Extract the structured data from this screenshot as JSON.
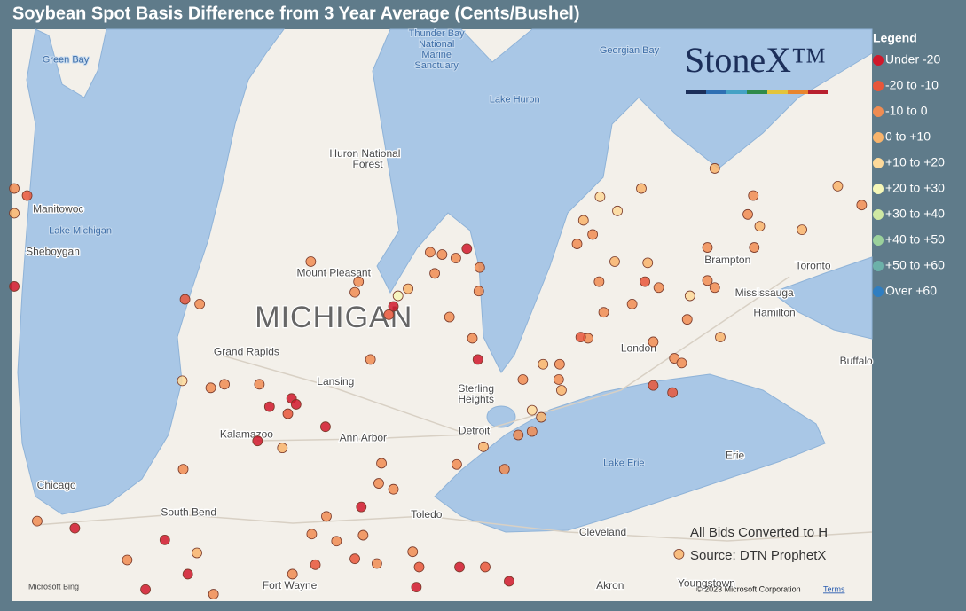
{
  "title": "Soybean Spot Basis Difference from 3 Year Average (Cents/Bushel)",
  "logo": "StoneX™",
  "footnotes": [
    "All Bids Converted to H",
    "Source: DTN ProphetX"
  ],
  "attribution": {
    "bing": "Microsoft Bing",
    "copyright": "© 2023 Microsoft Corporation",
    "terms": "Terms"
  },
  "legend": {
    "title": "Legend",
    "items": [
      {
        "label": "Under -20",
        "color": "#d0182b"
      },
      {
        "label": "-20 to -10",
        "color": "#e8563a"
      },
      {
        "label": "-10 to 0",
        "color": "#f08c52"
      },
      {
        "label": "0 to +10",
        "color": "#f8b46c"
      },
      {
        "label": "+10 to +20",
        "color": "#fdd99a"
      },
      {
        "label": "+20 to +30",
        "color": "#f6f7b8"
      },
      {
        "label": "+30 to +40",
        "color": "#cfe8a3"
      },
      {
        "label": "+40 to +50",
        "color": "#9bd19b"
      },
      {
        "label": "+50 to +60",
        "color": "#6cb1a9"
      },
      {
        "label": "Over +60",
        "color": "#2f7ec1"
      }
    ]
  },
  "map": {
    "labels": [
      {
        "text": "Green Bay",
        "lon": -87.26,
        "lat": 45.49,
        "kind": "water"
      },
      {
        "text": "Manitowoc",
        "lon": -87.34,
        "lat": 44.22,
        "kind": "place"
      },
      {
        "text": "Lake Michigan",
        "lon": -87.1,
        "lat": 44.04,
        "kind": "water"
      },
      {
        "text": "Sheboygan",
        "lon": -87.4,
        "lat": 43.86,
        "kind": "place"
      },
      {
        "text": "Chicago",
        "lon": -87.36,
        "lat": 41.88,
        "kind": "place"
      },
      {
        "text": "South Bend",
        "lon": -85.92,
        "lat": 41.65,
        "kind": "place"
      },
      {
        "text": "Thunder Bay",
        "lon": -83.22,
        "lat": 45.71,
        "kind": "water"
      },
      {
        "text": "National",
        "lon": -83.22,
        "lat": 45.62,
        "kind": "water"
      },
      {
        "text": "Marine",
        "lon": -83.22,
        "lat": 45.53,
        "kind": "water"
      },
      {
        "text": "Sanctuary",
        "lon": -83.22,
        "lat": 45.44,
        "kind": "water"
      },
      {
        "text": "Georgian Bay",
        "lon": -81.12,
        "lat": 45.57,
        "kind": "water"
      },
      {
        "text": "Lake Huron",
        "lon": -82.37,
        "lat": 45.15,
        "kind": "water"
      },
      {
        "text": "Huron National",
        "lon": -84.0,
        "lat": 44.69,
        "kind": "place"
      },
      {
        "text": "Forest",
        "lon": -83.97,
        "lat": 44.6,
        "kind": "place"
      },
      {
        "text": "Mount Pleasant",
        "lon": -84.34,
        "lat": 43.68,
        "kind": "place"
      },
      {
        "text": "MICHIGAN",
        "lon": -84.34,
        "lat": 43.29,
        "kind": "big"
      },
      {
        "text": "Grand Rapids",
        "lon": -85.29,
        "lat": 43.01,
        "kind": "place"
      },
      {
        "text": "Lansing",
        "lon": -84.32,
        "lat": 42.76,
        "kind": "place"
      },
      {
        "text": "Sterling",
        "lon": -82.79,
        "lat": 42.7,
        "kind": "place"
      },
      {
        "text": "Heights",
        "lon": -82.79,
        "lat": 42.61,
        "kind": "place"
      },
      {
        "text": "Detroit",
        "lon": -82.81,
        "lat": 42.34,
        "kind": "place"
      },
      {
        "text": "Ann Arbor",
        "lon": -84.02,
        "lat": 42.28,
        "kind": "place"
      },
      {
        "text": "Kalamazoo",
        "lon": -85.29,
        "lat": 42.31,
        "kind": "place"
      },
      {
        "text": "Toledo",
        "lon": -83.33,
        "lat": 41.63,
        "kind": "place"
      },
      {
        "text": "Lake Erie",
        "lon": -81.18,
        "lat": 42.07,
        "kind": "water"
      },
      {
        "text": "Erie",
        "lon": -79.97,
        "lat": 42.13,
        "kind": "place"
      },
      {
        "text": "Cleveland",
        "lon": -81.41,
        "lat": 41.48,
        "kind": "place"
      },
      {
        "text": "Akron",
        "lon": -81.33,
        "lat": 41.03,
        "kind": "place"
      },
      {
        "text": "Youngstown",
        "lon": -80.28,
        "lat": 41.05,
        "kind": "place"
      },
      {
        "text": "Fort Wayne",
        "lon": -84.82,
        "lat": 41.03,
        "kind": "place"
      },
      {
        "text": "London",
        "lon": -81.02,
        "lat": 43.04,
        "kind": "place"
      },
      {
        "text": "Brampton",
        "lon": -80.05,
        "lat": 43.79,
        "kind": "place"
      },
      {
        "text": "Mississauga",
        "lon": -79.65,
        "lat": 43.51,
        "kind": "place"
      },
      {
        "text": "Hamilton",
        "lon": -79.54,
        "lat": 43.34,
        "kind": "place"
      },
      {
        "text": "Toronto",
        "lon": -79.12,
        "lat": 43.74,
        "kind": "place"
      },
      {
        "text": "Buffalo",
        "lon": -78.65,
        "lat": 42.93,
        "kind": "place"
      }
    ],
    "points": [
      {
        "lon": -87.82,
        "lat": 43.57,
        "class": 0
      },
      {
        "lon": -85.96,
        "lat": 43.46,
        "class": 1
      },
      {
        "lon": -85.8,
        "lat": 43.42,
        "class": 2
      },
      {
        "lon": -84.59,
        "lat": 43.78,
        "class": 2
      },
      {
        "lon": -84.07,
        "lat": 43.61,
        "class": 2
      },
      {
        "lon": -84.11,
        "lat": 43.52,
        "class": 2
      },
      {
        "lon": -83.69,
        "lat": 43.4,
        "class": 0
      },
      {
        "lon": -83.74,
        "lat": 43.33,
        "class": 1
      },
      {
        "lon": -83.64,
        "lat": 43.49,
        "class": 5
      },
      {
        "lon": -83.53,
        "lat": 43.55,
        "class": 3
      },
      {
        "lon": -83.29,
        "lat": 43.86,
        "class": 2
      },
      {
        "lon": -83.16,
        "lat": 43.84,
        "class": 2
      },
      {
        "lon": -83.01,
        "lat": 43.81,
        "class": 2
      },
      {
        "lon": -82.89,
        "lat": 43.89,
        "class": 0
      },
      {
        "lon": -82.75,
        "lat": 43.73,
        "class": 2
      },
      {
        "lon": -82.76,
        "lat": 43.53,
        "class": 2
      },
      {
        "lon": -83.24,
        "lat": 43.68,
        "class": 2
      },
      {
        "lon": -83.08,
        "lat": 43.31,
        "class": 2
      },
      {
        "lon": -82.83,
        "lat": 43.13,
        "class": 2
      },
      {
        "lon": -82.77,
        "lat": 42.95,
        "class": 0
      },
      {
        "lon": -83.94,
        "lat": 42.95,
        "class": 2
      },
      {
        "lon": -85.99,
        "lat": 42.77,
        "class": 4
      },
      {
        "lon": -85.68,
        "lat": 42.71,
        "class": 2
      },
      {
        "lon": -85.53,
        "lat": 42.74,
        "class": 2
      },
      {
        "lon": -85.15,
        "lat": 42.74,
        "class": 2
      },
      {
        "lon": -84.8,
        "lat": 42.62,
        "class": 0
      },
      {
        "lon": -84.75,
        "lat": 42.57,
        "class": 0
      },
      {
        "lon": -85.04,
        "lat": 42.55,
        "class": 0
      },
      {
        "lon": -84.84,
        "lat": 42.49,
        "class": 1
      },
      {
        "lon": -84.43,
        "lat": 42.38,
        "class": 0
      },
      {
        "lon": -85.17,
        "lat": 42.26,
        "class": 0
      },
      {
        "lon": -84.9,
        "lat": 42.2,
        "class": 3
      },
      {
        "lon": -85.98,
        "lat": 42.02,
        "class": 2
      },
      {
        "lon": -83.82,
        "lat": 42.07,
        "class": 2
      },
      {
        "lon": -83.85,
        "lat": 41.9,
        "class": 2
      },
      {
        "lon": -83.69,
        "lat": 41.85,
        "class": 2
      },
      {
        "lon": -84.04,
        "lat": 41.7,
        "class": 0
      },
      {
        "lon": -84.42,
        "lat": 41.62,
        "class": 2
      },
      {
        "lon": -84.58,
        "lat": 41.47,
        "class": 2
      },
      {
        "lon": -84.31,
        "lat": 41.41,
        "class": 2
      },
      {
        "lon": -84.02,
        "lat": 41.46,
        "class": 2
      },
      {
        "lon": -84.11,
        "lat": 41.26,
        "class": 1
      },
      {
        "lon": -83.87,
        "lat": 41.22,
        "class": 2
      },
      {
        "lon": -84.54,
        "lat": 41.21,
        "class": 1
      },
      {
        "lon": -84.79,
        "lat": 41.13,
        "class": 2
      },
      {
        "lon": -87.16,
        "lat": 41.52,
        "class": 0
      },
      {
        "lon": -86.18,
        "lat": 41.42,
        "class": 0
      },
      {
        "lon": -85.83,
        "lat": 41.31,
        "class": 3
      },
      {
        "lon": -86.59,
        "lat": 41.25,
        "class": 2
      },
      {
        "lon": -85.93,
        "lat": 41.13,
        "class": 0
      },
      {
        "lon": -85.65,
        "lat": 40.96,
        "class": 2
      },
      {
        "lon": -86.39,
        "lat": 41.0,
        "class": 0
      },
      {
        "lon": -87.57,
        "lat": 41.58,
        "class": 2
      },
      {
        "lon": -83.48,
        "lat": 41.32,
        "class": 2
      },
      {
        "lon": -83.41,
        "lat": 41.19,
        "class": 1
      },
      {
        "lon": -83.44,
        "lat": 41.02,
        "class": 0
      },
      {
        "lon": -82.97,
        "lat": 41.19,
        "class": 0
      },
      {
        "lon": -82.43,
        "lat": 41.07,
        "class": 0
      },
      {
        "lon": -82.69,
        "lat": 41.19,
        "class": 1
      },
      {
        "lon": -83.0,
        "lat": 42.06,
        "class": 2
      },
      {
        "lon": -82.71,
        "lat": 42.21,
        "class": 3
      },
      {
        "lon": -82.48,
        "lat": 42.02,
        "class": 2
      },
      {
        "lon": -82.33,
        "lat": 42.31,
        "class": 2
      },
      {
        "lon": -82.18,
        "lat": 42.34,
        "class": 2
      },
      {
        "lon": -82.08,
        "lat": 42.46,
        "class": 3
      },
      {
        "lon": -82.18,
        "lat": 42.52,
        "class": 4
      },
      {
        "lon": -81.86,
        "lat": 42.69,
        "class": 3
      },
      {
        "lon": -81.89,
        "lat": 42.78,
        "class": 2
      },
      {
        "lon": -82.06,
        "lat": 42.91,
        "class": 3
      },
      {
        "lon": -81.88,
        "lat": 42.91,
        "class": 2
      },
      {
        "lon": -82.28,
        "lat": 42.78,
        "class": 2
      },
      {
        "lon": -81.57,
        "lat": 43.13,
        "class": 2
      },
      {
        "lon": -81.65,
        "lat": 43.14,
        "class": 1
      },
      {
        "lon": -81.4,
        "lat": 43.35,
        "class": 2
      },
      {
        "lon": -81.45,
        "lat": 43.61,
        "class": 2
      },
      {
        "lon": -81.28,
        "lat": 43.78,
        "class": 3
      },
      {
        "lon": -81.09,
        "lat": 43.42,
        "class": 2
      },
      {
        "lon": -80.95,
        "lat": 43.61,
        "class": 1
      },
      {
        "lon": -80.8,
        "lat": 43.56,
        "class": 2
      },
      {
        "lon": -80.86,
        "lat": 43.1,
        "class": 2
      },
      {
        "lon": -80.86,
        "lat": 42.73,
        "class": 1
      },
      {
        "lon": -80.65,
        "lat": 42.67,
        "class": 1
      },
      {
        "lon": -80.63,
        "lat": 42.96,
        "class": 2
      },
      {
        "lon": -80.55,
        "lat": 42.92,
        "class": 2
      },
      {
        "lon": -80.46,
        "lat": 43.49,
        "class": 4
      },
      {
        "lon": -80.27,
        "lat": 43.62,
        "class": 2
      },
      {
        "lon": -80.19,
        "lat": 43.56,
        "class": 2
      },
      {
        "lon": -80.49,
        "lat": 43.29,
        "class": 2
      },
      {
        "lon": -80.13,
        "lat": 43.14,
        "class": 3
      },
      {
        "lon": -80.27,
        "lat": 43.9,
        "class": 2
      },
      {
        "lon": -79.76,
        "lat": 43.9,
        "class": 2
      },
      {
        "lon": -79.83,
        "lat": 44.18,
        "class": 2
      },
      {
        "lon": -79.77,
        "lat": 44.34,
        "class": 2
      },
      {
        "lon": -79.7,
        "lat": 44.08,
        "class": 3
      },
      {
        "lon": -79.24,
        "lat": 44.05,
        "class": 3
      },
      {
        "lon": -78.85,
        "lat": 44.42,
        "class": 3
      },
      {
        "lon": -78.59,
        "lat": 44.26,
        "class": 2
      },
      {
        "lon": -80.19,
        "lat": 44.57,
        "class": 3
      },
      {
        "lon": -80.99,
        "lat": 44.4,
        "class": 3
      },
      {
        "lon": -81.25,
        "lat": 44.21,
        "class": 4
      },
      {
        "lon": -81.44,
        "lat": 44.33,
        "class": 4
      },
      {
        "lon": -81.62,
        "lat": 44.13,
        "class": 3
      },
      {
        "lon": -81.52,
        "lat": 44.01,
        "class": 2
      },
      {
        "lon": -81.69,
        "lat": 43.93,
        "class": 2
      },
      {
        "lon": -80.92,
        "lat": 43.77,
        "class": 3
      },
      {
        "lon": -87.82,
        "lat": 44.4,
        "class": 2
      },
      {
        "lon": -87.68,
        "lat": 44.34,
        "class": 1
      },
      {
        "lon": -87.82,
        "lat": 44.19,
        "class": 3
      },
      {
        "lon": -80.58,
        "lat": 41.3,
        "class": 3
      }
    ]
  }
}
